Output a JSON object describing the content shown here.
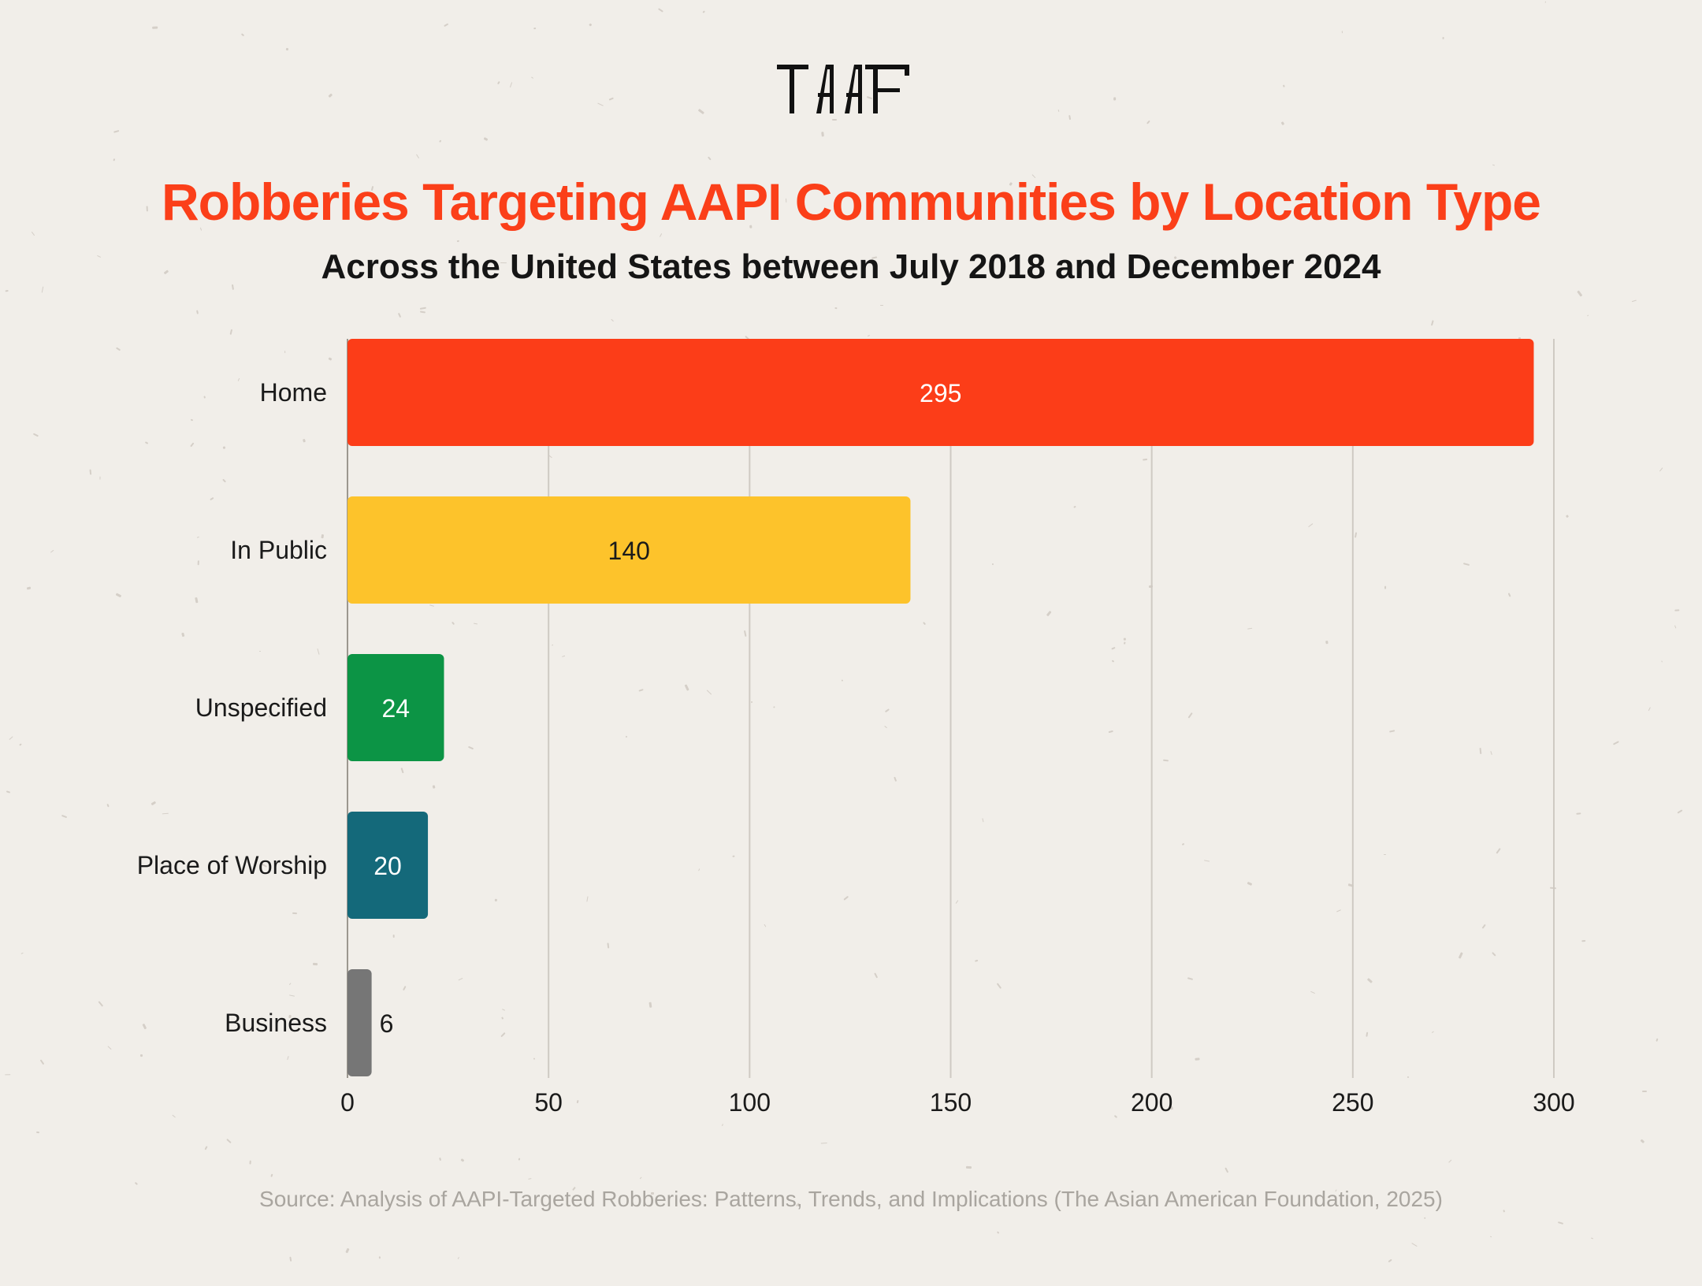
{
  "brand": {
    "logo_text": "TAAF",
    "logo_color": "#111111"
  },
  "chart_data": {
    "type": "bar",
    "orientation": "horizontal",
    "title": "Robberies Targeting AAPI Communities by Location Type",
    "subtitle": "Across the United States between July 2018 and December 2024",
    "categories": [
      "Home",
      "In Public",
      "Unspecified",
      "Place of Worship",
      "Business"
    ],
    "values": [
      295,
      140,
      24,
      20,
      6
    ],
    "colors": [
      "#fc3d18",
      "#fdc32b",
      "#0c9445",
      "#14697a",
      "#767676"
    ],
    "label_colors": [
      "#ffffff",
      "#1a1a1a",
      "#ffffff",
      "#ffffff",
      "#1a1a1a"
    ],
    "xlim": [
      0,
      300
    ],
    "xticks": [
      0,
      50,
      100,
      150,
      200,
      250,
      300
    ],
    "grid": true,
    "xlabel": "",
    "ylabel": "",
    "legend": "none"
  },
  "source": "Source: Analysis of AAPI-Targeted Robberies: Patterns, Trends, and Implications (The Asian American Foundation, 2025)",
  "colors": {
    "title": "#fb3f19",
    "background": "#f1eee9"
  }
}
